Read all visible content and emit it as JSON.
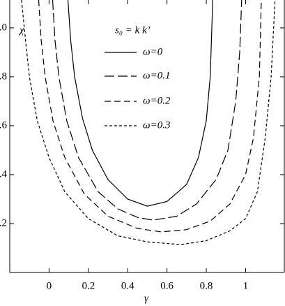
{
  "chart_data": {
    "type": "line",
    "annotation": "s₀ = k k’",
    "x_label": "γ",
    "y_label": "χ",
    "xlim": [
      -0.2,
      1.197
    ],
    "ylim": [
      0,
      1.114
    ],
    "xticks": [
      0,
      0.2,
      0.4,
      0.6,
      0.8,
      1
    ],
    "yticks": [
      {
        "value": 0.2,
        "label": "0.2"
      },
      {
        "value": 0.4,
        "label": "0.4"
      },
      {
        "value": 0.6,
        "label": "0.6"
      },
      {
        "value": 0.8,
        "label": "0.8"
      },
      {
        "value": 1,
        "label": "1.0"
      }
    ],
    "series": [
      {
        "name": "ω=0",
        "color": "#000",
        "dash": "none",
        "x": [
          0.096,
          0.11,
          0.13,
          0.17,
          0.22,
          0.3,
          0.4,
          0.5,
          0.6,
          0.7,
          0.76,
          0.8,
          0.82,
          0.833
        ],
        "values": [
          1.114,
          0.95,
          0.8,
          0.63,
          0.5,
          0.38,
          0.3,
          0.271,
          0.29,
          0.36,
          0.47,
          0.62,
          0.8,
          1.114
        ]
      },
      {
        "name": "ω=0.1",
        "color": "#000",
        "dash": "14 5",
        "x": [
          0.018,
          0.03,
          0.05,
          0.09,
          0.15,
          0.25,
          0.35,
          0.45,
          0.53,
          0.65,
          0.75,
          0.85,
          0.91,
          0.95,
          0.97,
          0.98
        ],
        "values": [
          1.114,
          0.95,
          0.8,
          0.62,
          0.47,
          0.33,
          0.26,
          0.225,
          0.214,
          0.23,
          0.28,
          0.38,
          0.5,
          0.7,
          0.9,
          1.114
        ]
      },
      {
        "name": "ω=0.2",
        "color": "#000",
        "dash": "9 5",
        "x": [
          -0.053,
          -0.04,
          -0.02,
          0.02,
          0.08,
          0.18,
          0.3,
          0.45,
          0.57,
          0.7,
          0.82,
          0.92,
          1.0,
          1.04,
          1.07,
          1.08
        ],
        "values": [
          1.114,
          0.95,
          0.8,
          0.62,
          0.47,
          0.32,
          0.23,
          0.18,
          0.166,
          0.175,
          0.21,
          0.28,
          0.4,
          0.55,
          0.8,
          1.114
        ]
      },
      {
        "name": "ω=0.3",
        "color": "#000",
        "dash": "4 3",
        "x": [
          -0.14,
          -0.12,
          -0.1,
          -0.06,
          0.0,
          0.08,
          0.2,
          0.35,
          0.5,
          0.67,
          0.8,
          0.92,
          1.0,
          1.06,
          1.1,
          1.13,
          1.15
        ],
        "values": [
          1.114,
          0.95,
          0.8,
          0.62,
          0.47,
          0.33,
          0.22,
          0.15,
          0.125,
          0.114,
          0.13,
          0.17,
          0.22,
          0.33,
          0.55,
          0.8,
          1.114
        ]
      }
    ]
  }
}
